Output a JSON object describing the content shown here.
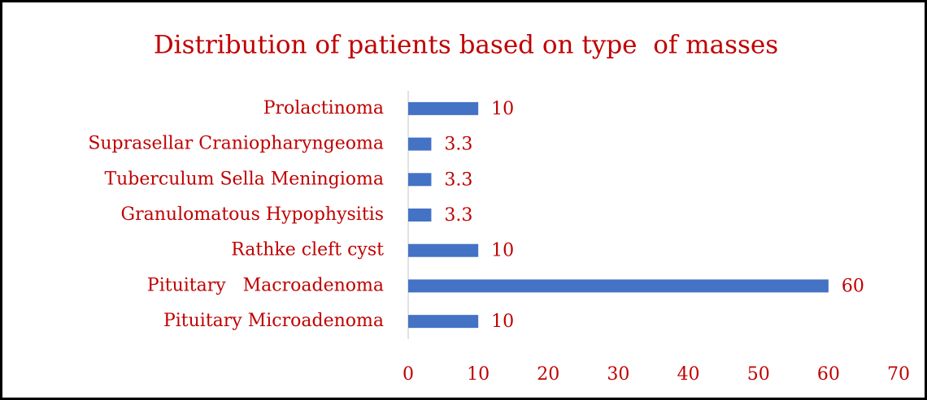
{
  "chart_data": {
    "type": "bar",
    "orientation": "horizontal",
    "title": "Distribution of patients based on type  of masses",
    "categories": [
      "Prolactinoma",
      "Suprasellar Craniopharyngeoma",
      "Tuberculum Sella Meningioma",
      "Granulomatous Hypophysitis",
      "Rathke cleft cyst",
      "Pituitary   Macroadenoma",
      "Pituitary Microadenoma"
    ],
    "values": [
      10,
      3.3,
      3.3,
      3.3,
      10,
      60,
      10
    ],
    "color": "#4472c4",
    "xlim": [
      0,
      70
    ],
    "xticks": [
      0,
      10,
      20,
      30,
      40,
      50,
      60,
      70
    ],
    "grid": false
  }
}
